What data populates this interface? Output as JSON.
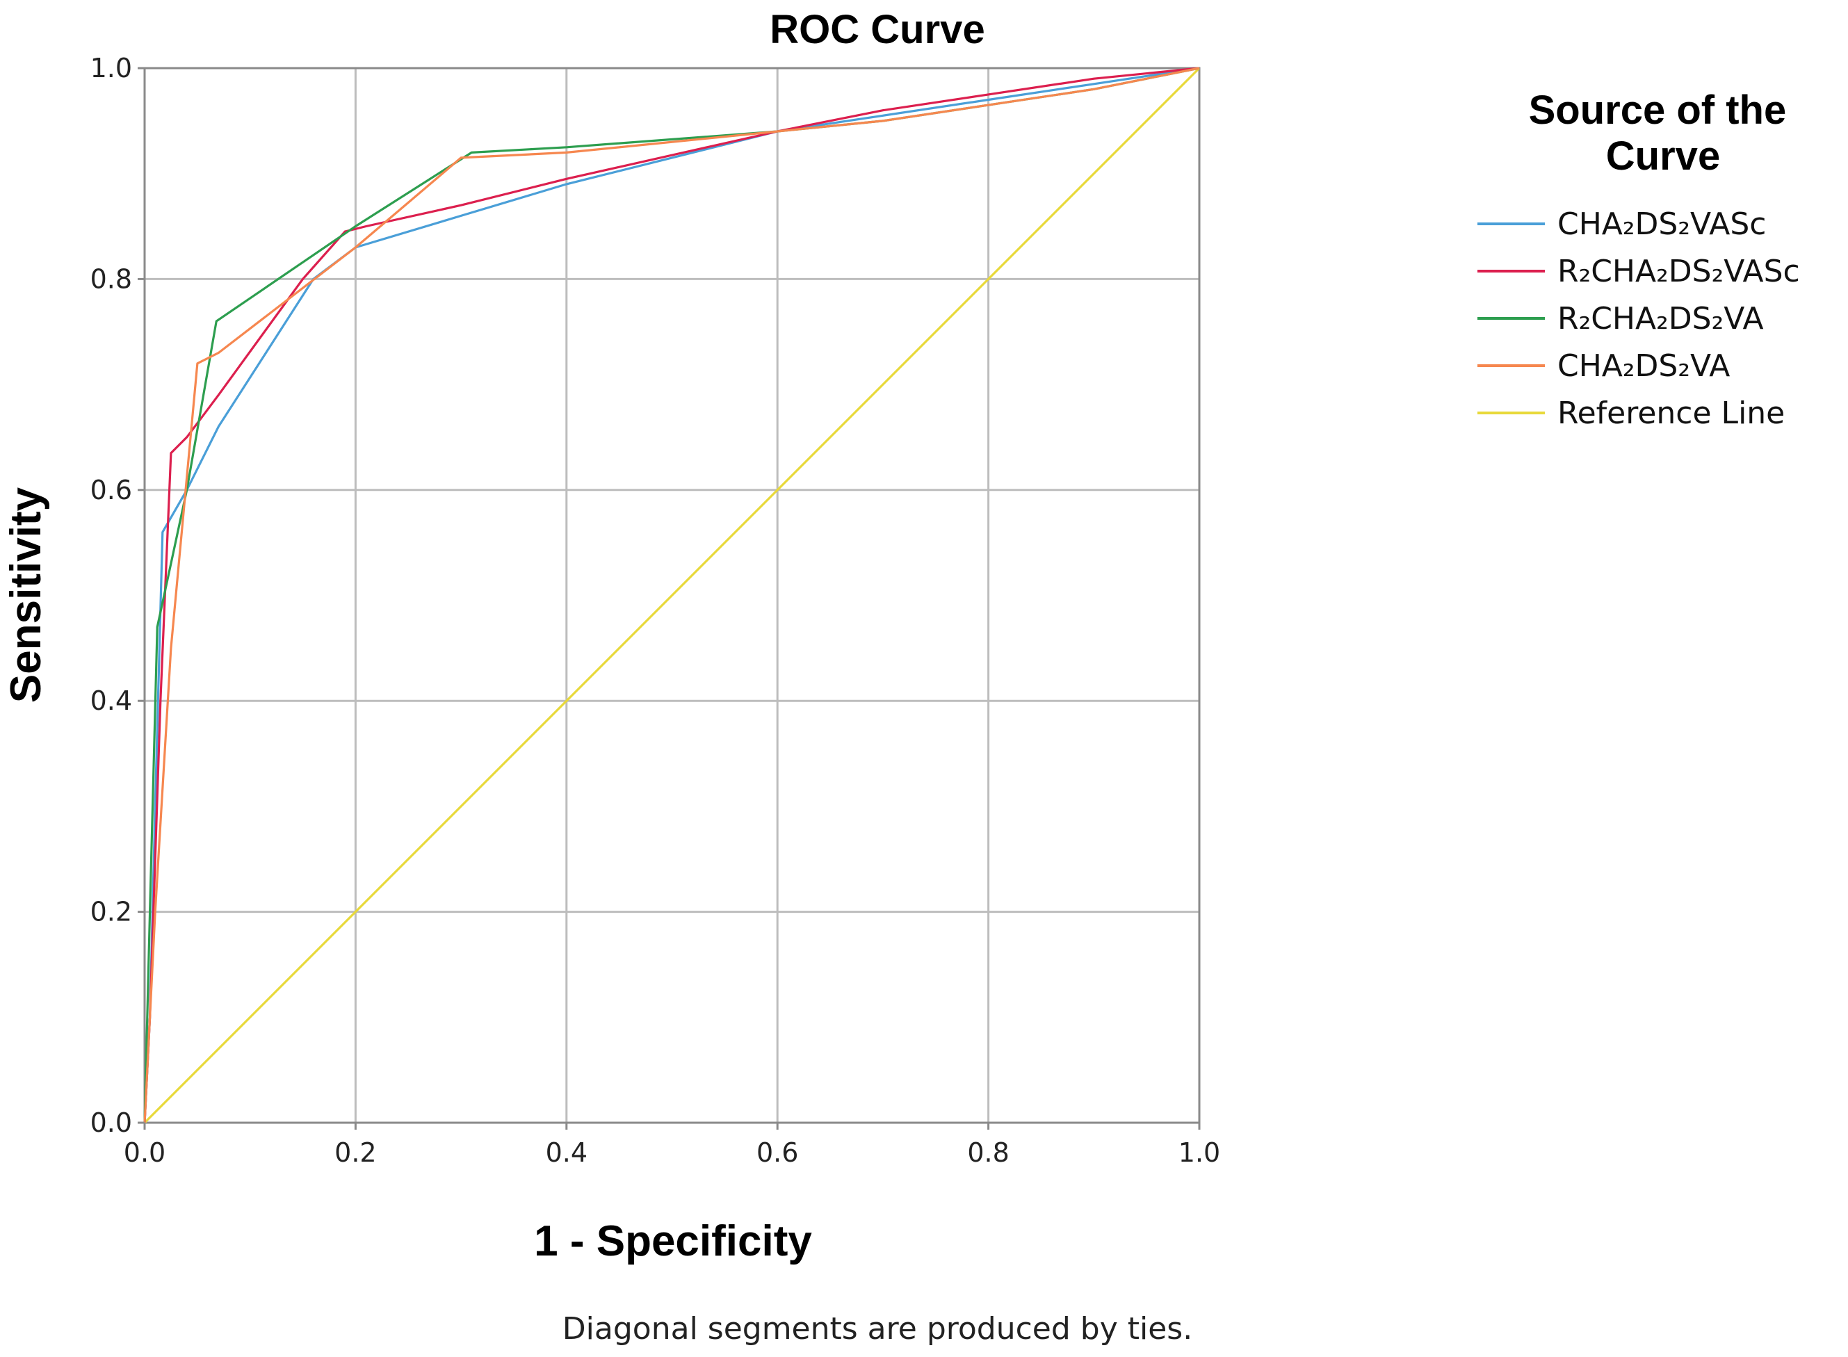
{
  "chart_data": {
    "type": "line",
    "title": "ROC Curve",
    "xlabel": "1 - Specificity",
    "ylabel": "Sensitivity",
    "xlim": [
      0,
      1
    ],
    "ylim": [
      0,
      1
    ],
    "grid": true,
    "x_ticks": [
      "0.0",
      "0.2",
      "0.4",
      "0.6",
      "0.8",
      "1.0"
    ],
    "y_ticks": [
      "0.0",
      "0.2",
      "0.4",
      "0.6",
      "0.8",
      "1.0"
    ],
    "legend_title": "Source of the Curve",
    "legend_position": "right",
    "footnote": "Diagonal segments are produced by ties.",
    "series": [
      {
        "name": "CHA₂DS₂VASc",
        "color": "#4a9fd8",
        "points": [
          [
            0,
            0
          ],
          [
            0.005,
            0.1
          ],
          [
            0.01,
            0.3
          ],
          [
            0.017,
            0.56
          ],
          [
            0.04,
            0.6
          ],
          [
            0.07,
            0.66
          ],
          [
            0.16,
            0.8
          ],
          [
            0.2,
            0.83
          ],
          [
            0.3,
            0.86
          ],
          [
            0.4,
            0.89
          ],
          [
            0.6,
            0.94
          ],
          [
            0.7,
            0.955
          ],
          [
            0.8,
            0.97
          ],
          [
            0.9,
            0.985
          ],
          [
            1,
            1
          ]
        ]
      },
      {
        "name": "R₂CHA₂DS₂VASc",
        "color": "#dc1f4e",
        "points": [
          [
            0,
            0
          ],
          [
            0.005,
            0.1
          ],
          [
            0.015,
            0.4
          ],
          [
            0.025,
            0.635
          ],
          [
            0.04,
            0.65
          ],
          [
            0.07,
            0.69
          ],
          [
            0.15,
            0.8
          ],
          [
            0.19,
            0.845
          ],
          [
            0.21,
            0.85
          ],
          [
            0.3,
            0.87
          ],
          [
            0.4,
            0.895
          ],
          [
            0.6,
            0.94
          ],
          [
            0.7,
            0.96
          ],
          [
            0.8,
            0.975
          ],
          [
            0.9,
            0.99
          ],
          [
            1,
            1
          ]
        ]
      },
      {
        "name": "R₂CHA₂DS₂VA",
        "color": "#2d9e4f",
        "points": [
          [
            0,
            0
          ],
          [
            0.005,
            0.2
          ],
          [
            0.012,
            0.47
          ],
          [
            0.04,
            0.6
          ],
          [
            0.068,
            0.76
          ],
          [
            0.2,
            0.85
          ],
          [
            0.31,
            0.92
          ],
          [
            0.4,
            0.925
          ],
          [
            0.6,
            0.94
          ],
          [
            0.7,
            0.95
          ],
          [
            0.8,
            0.965
          ],
          [
            0.9,
            0.98
          ],
          [
            1,
            1
          ]
        ]
      },
      {
        "name": "CHA₂DS₂VA",
        "color": "#f6874f",
        "points": [
          [
            0,
            0
          ],
          [
            0.01,
            0.2
          ],
          [
            0.025,
            0.45
          ],
          [
            0.05,
            0.72
          ],
          [
            0.07,
            0.73
          ],
          [
            0.2,
            0.83
          ],
          [
            0.3,
            0.915
          ],
          [
            0.4,
            0.92
          ],
          [
            0.6,
            0.94
          ],
          [
            0.7,
            0.95
          ],
          [
            0.8,
            0.965
          ],
          [
            0.9,
            0.98
          ],
          [
            1,
            1
          ]
        ]
      },
      {
        "name": "Reference Line",
        "color": "#e8d93a",
        "points": [
          [
            0,
            0
          ],
          [
            1,
            1
          ]
        ]
      }
    ]
  }
}
